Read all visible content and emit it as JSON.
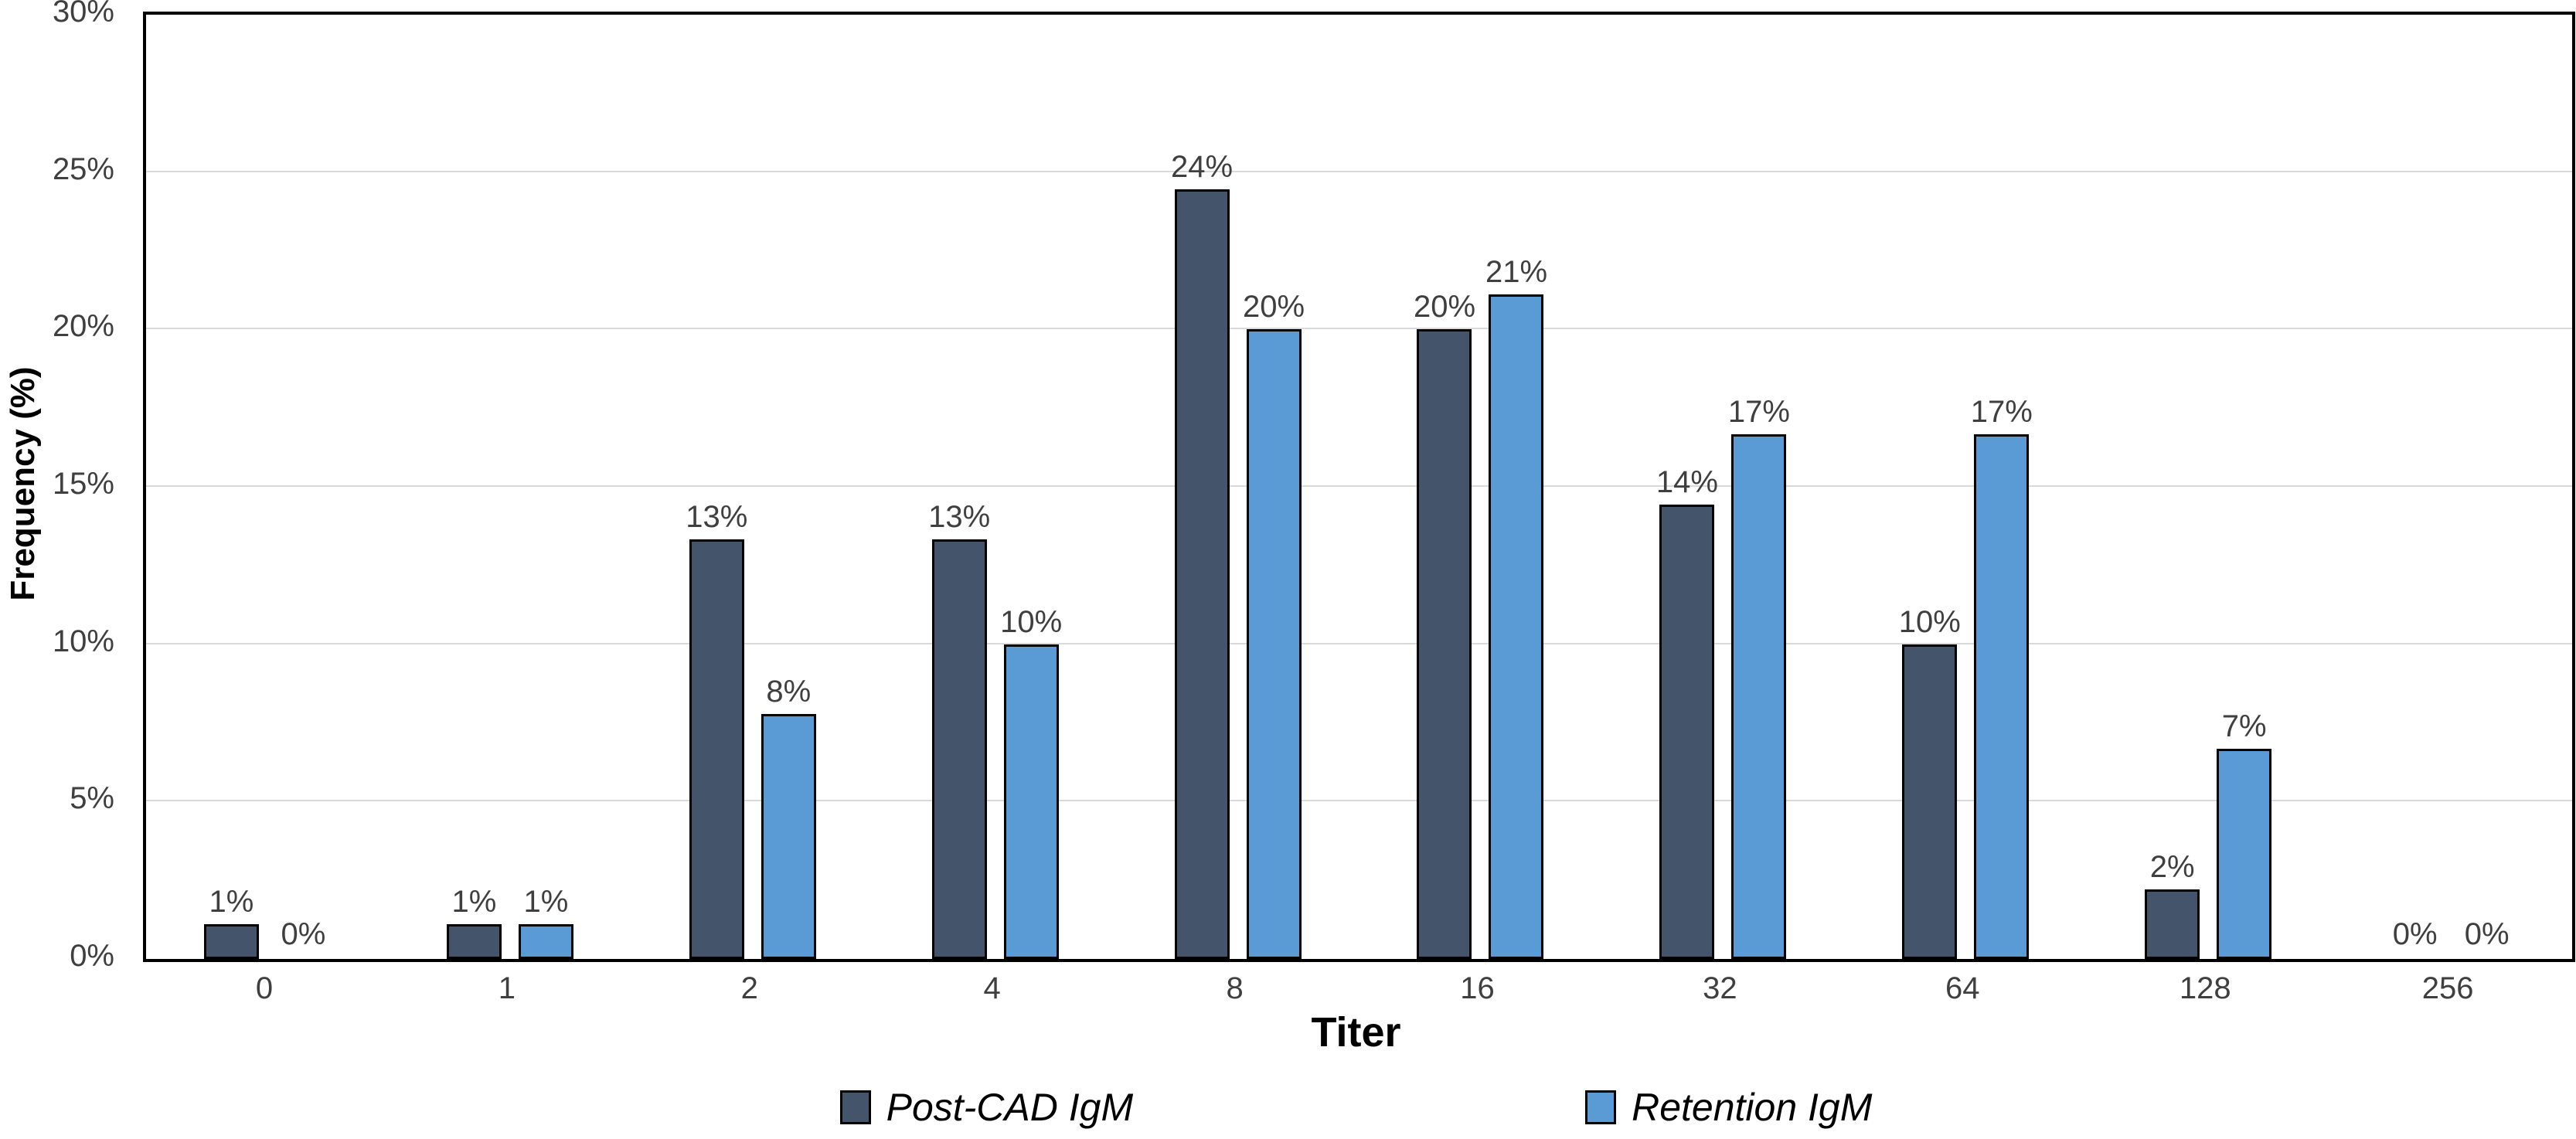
{
  "chart_data": {
    "type": "bar",
    "title": "",
    "xlabel": "Titer",
    "ylabel": "Frequency (%)",
    "categories": [
      "0",
      "1",
      "2",
      "4",
      "8",
      "16",
      "32",
      "64",
      "128",
      "256"
    ],
    "ylim": [
      0,
      30
    ],
    "grid": true,
    "legend_position": "bottom",
    "gridline_values": [
      5,
      10,
      15,
      20,
      25
    ],
    "y_ticks": [
      {
        "value": 0,
        "label": "0%"
      },
      {
        "value": 5,
        "label": "5%"
      },
      {
        "value": 10,
        "label": "10%"
      },
      {
        "value": 15,
        "label": "15%"
      },
      {
        "value": 20,
        "label": "20%"
      },
      {
        "value": 25,
        "label": "25%"
      },
      {
        "value": 30,
        "label": "30%"
      }
    ],
    "series": [
      {
        "name": "Post-CAD IgM",
        "color": "#44546A",
        "values": [
          1.11,
          1.11,
          13.33,
          13.33,
          24.44,
          20.0,
          14.44,
          10.0,
          2.22,
          0
        ],
        "labels": [
          "1%",
          "1%",
          "13%",
          "13%",
          "24%",
          "20%",
          "14%",
          "10%",
          "2%",
          "0%"
        ]
      },
      {
        "name": "Retention IgM",
        "color": "#5B9BD5",
        "values": [
          0,
          1.11,
          7.78,
          10.0,
          20.0,
          21.11,
          16.67,
          16.67,
          6.67,
          0
        ],
        "labels": [
          "0%",
          "1%",
          "8%",
          "10%",
          "20%",
          "21%",
          "17%",
          "17%",
          "7%",
          "0%"
        ]
      }
    ],
    "colors": {
      "bar_outline": "#000000",
      "gridline": "#D9D9D9",
      "tick_label": "#3F3F3F",
      "axis_title": "#000000"
    }
  }
}
